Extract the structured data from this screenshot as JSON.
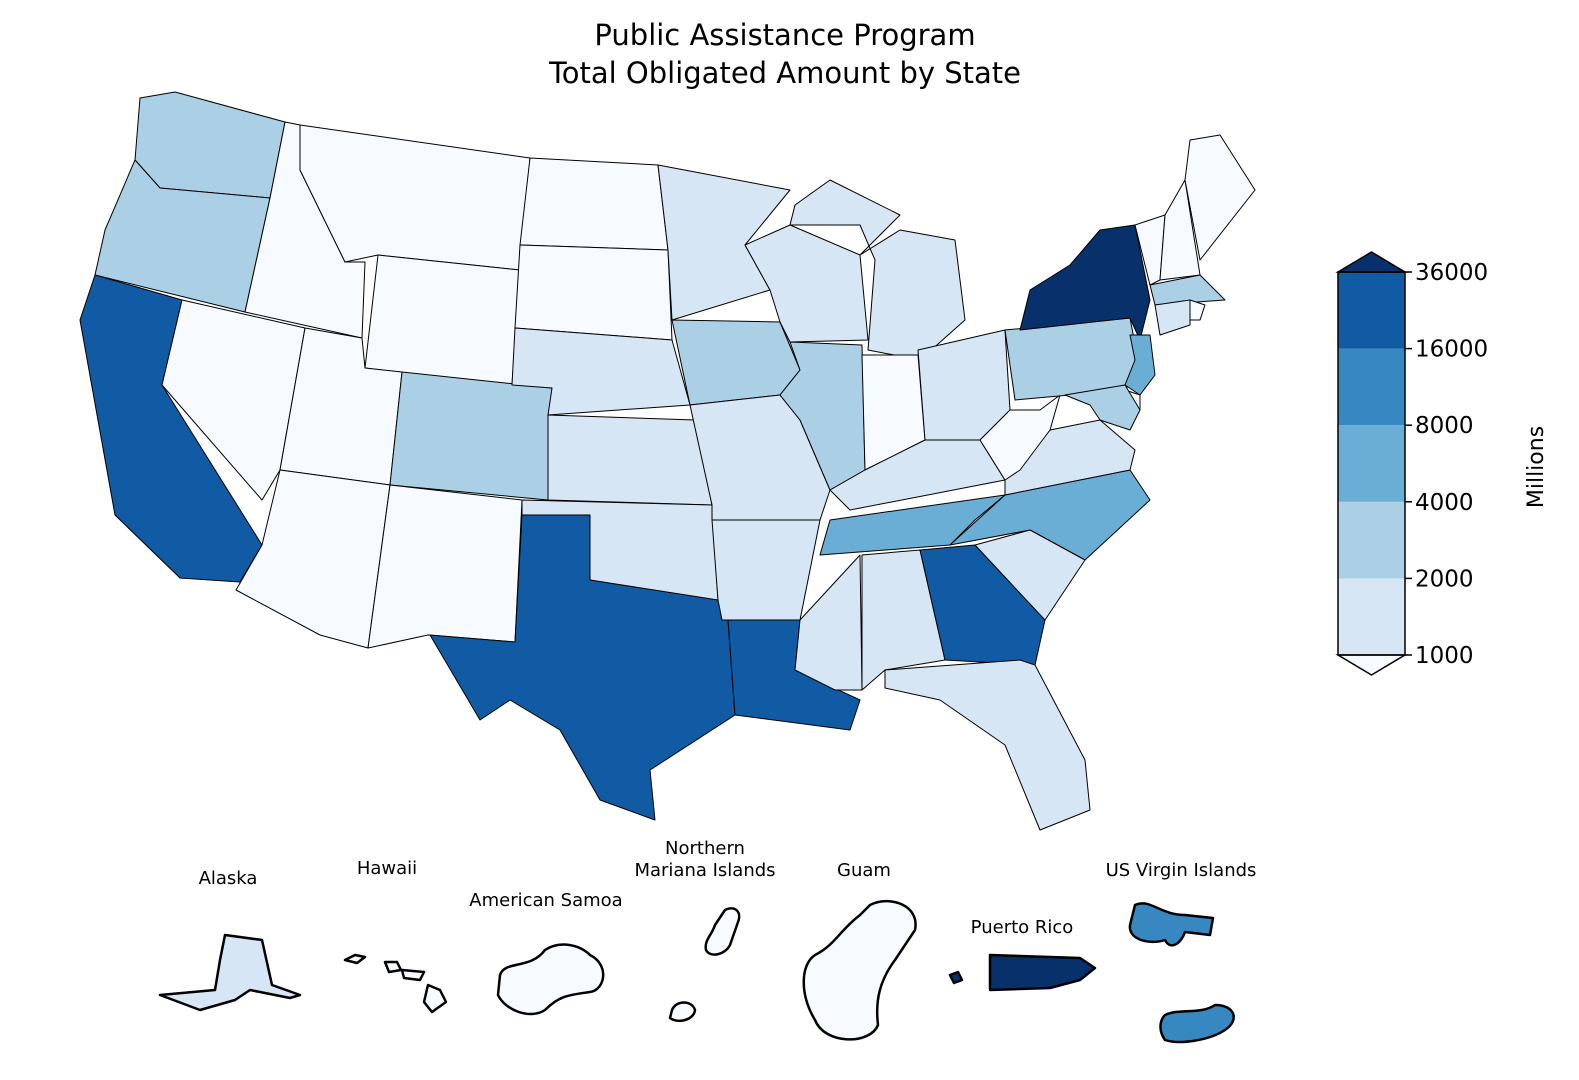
{
  "chart_data": {
    "type": "choropleth",
    "title": [
      "Public Assistance Program",
      "Total Obligated Amount by State"
    ],
    "colorbar": {
      "label": "Millions",
      "ticks": [
        1000,
        2000,
        4000,
        8000,
        16000,
        36000
      ],
      "colors": [
        "#d6e6f4",
        "#abd0e6",
        "#6aaed6",
        "#3787c0",
        "#105ba4"
      ],
      "under_color": "#f7fbff",
      "over_color": "#08306b"
    },
    "regions": [
      3000,
      3000,
      20000,
      500,
      500,
      500,
      500,
      500,
      500,
      3000,
      500,
      500,
      500,
      1500,
      1500,
      1500,
      20000,
      1500,
      3000,
      1500,
      1500,
      20000,
      1500,
      3000,
      1500,
      500,
      1500,
      1500,
      6000,
      1500,
      1500,
      20000,
      1500,
      6000,
      1500,
      1500,
      500,
      3000,
      40000,
      500,
      500,
      500,
      3000,
      1500,
      500,
      6000,
      500,
      3000
    ],
    "territories": [
      {
        "name": "Alaska",
        "value": 1500
      },
      {
        "name": "Hawaii",
        "value": 500
      },
      {
        "name": "American Samoa",
        "value": 500
      },
      {
        "name": [
          "Northern",
          "Mariana Islands"
        ],
        "value": 500
      },
      {
        "name": "Guam",
        "value": 500
      },
      {
        "name": "Puerto Rico",
        "value": 40000
      },
      {
        "name": "US Virgin Islands",
        "value": 12000
      }
    ]
  }
}
